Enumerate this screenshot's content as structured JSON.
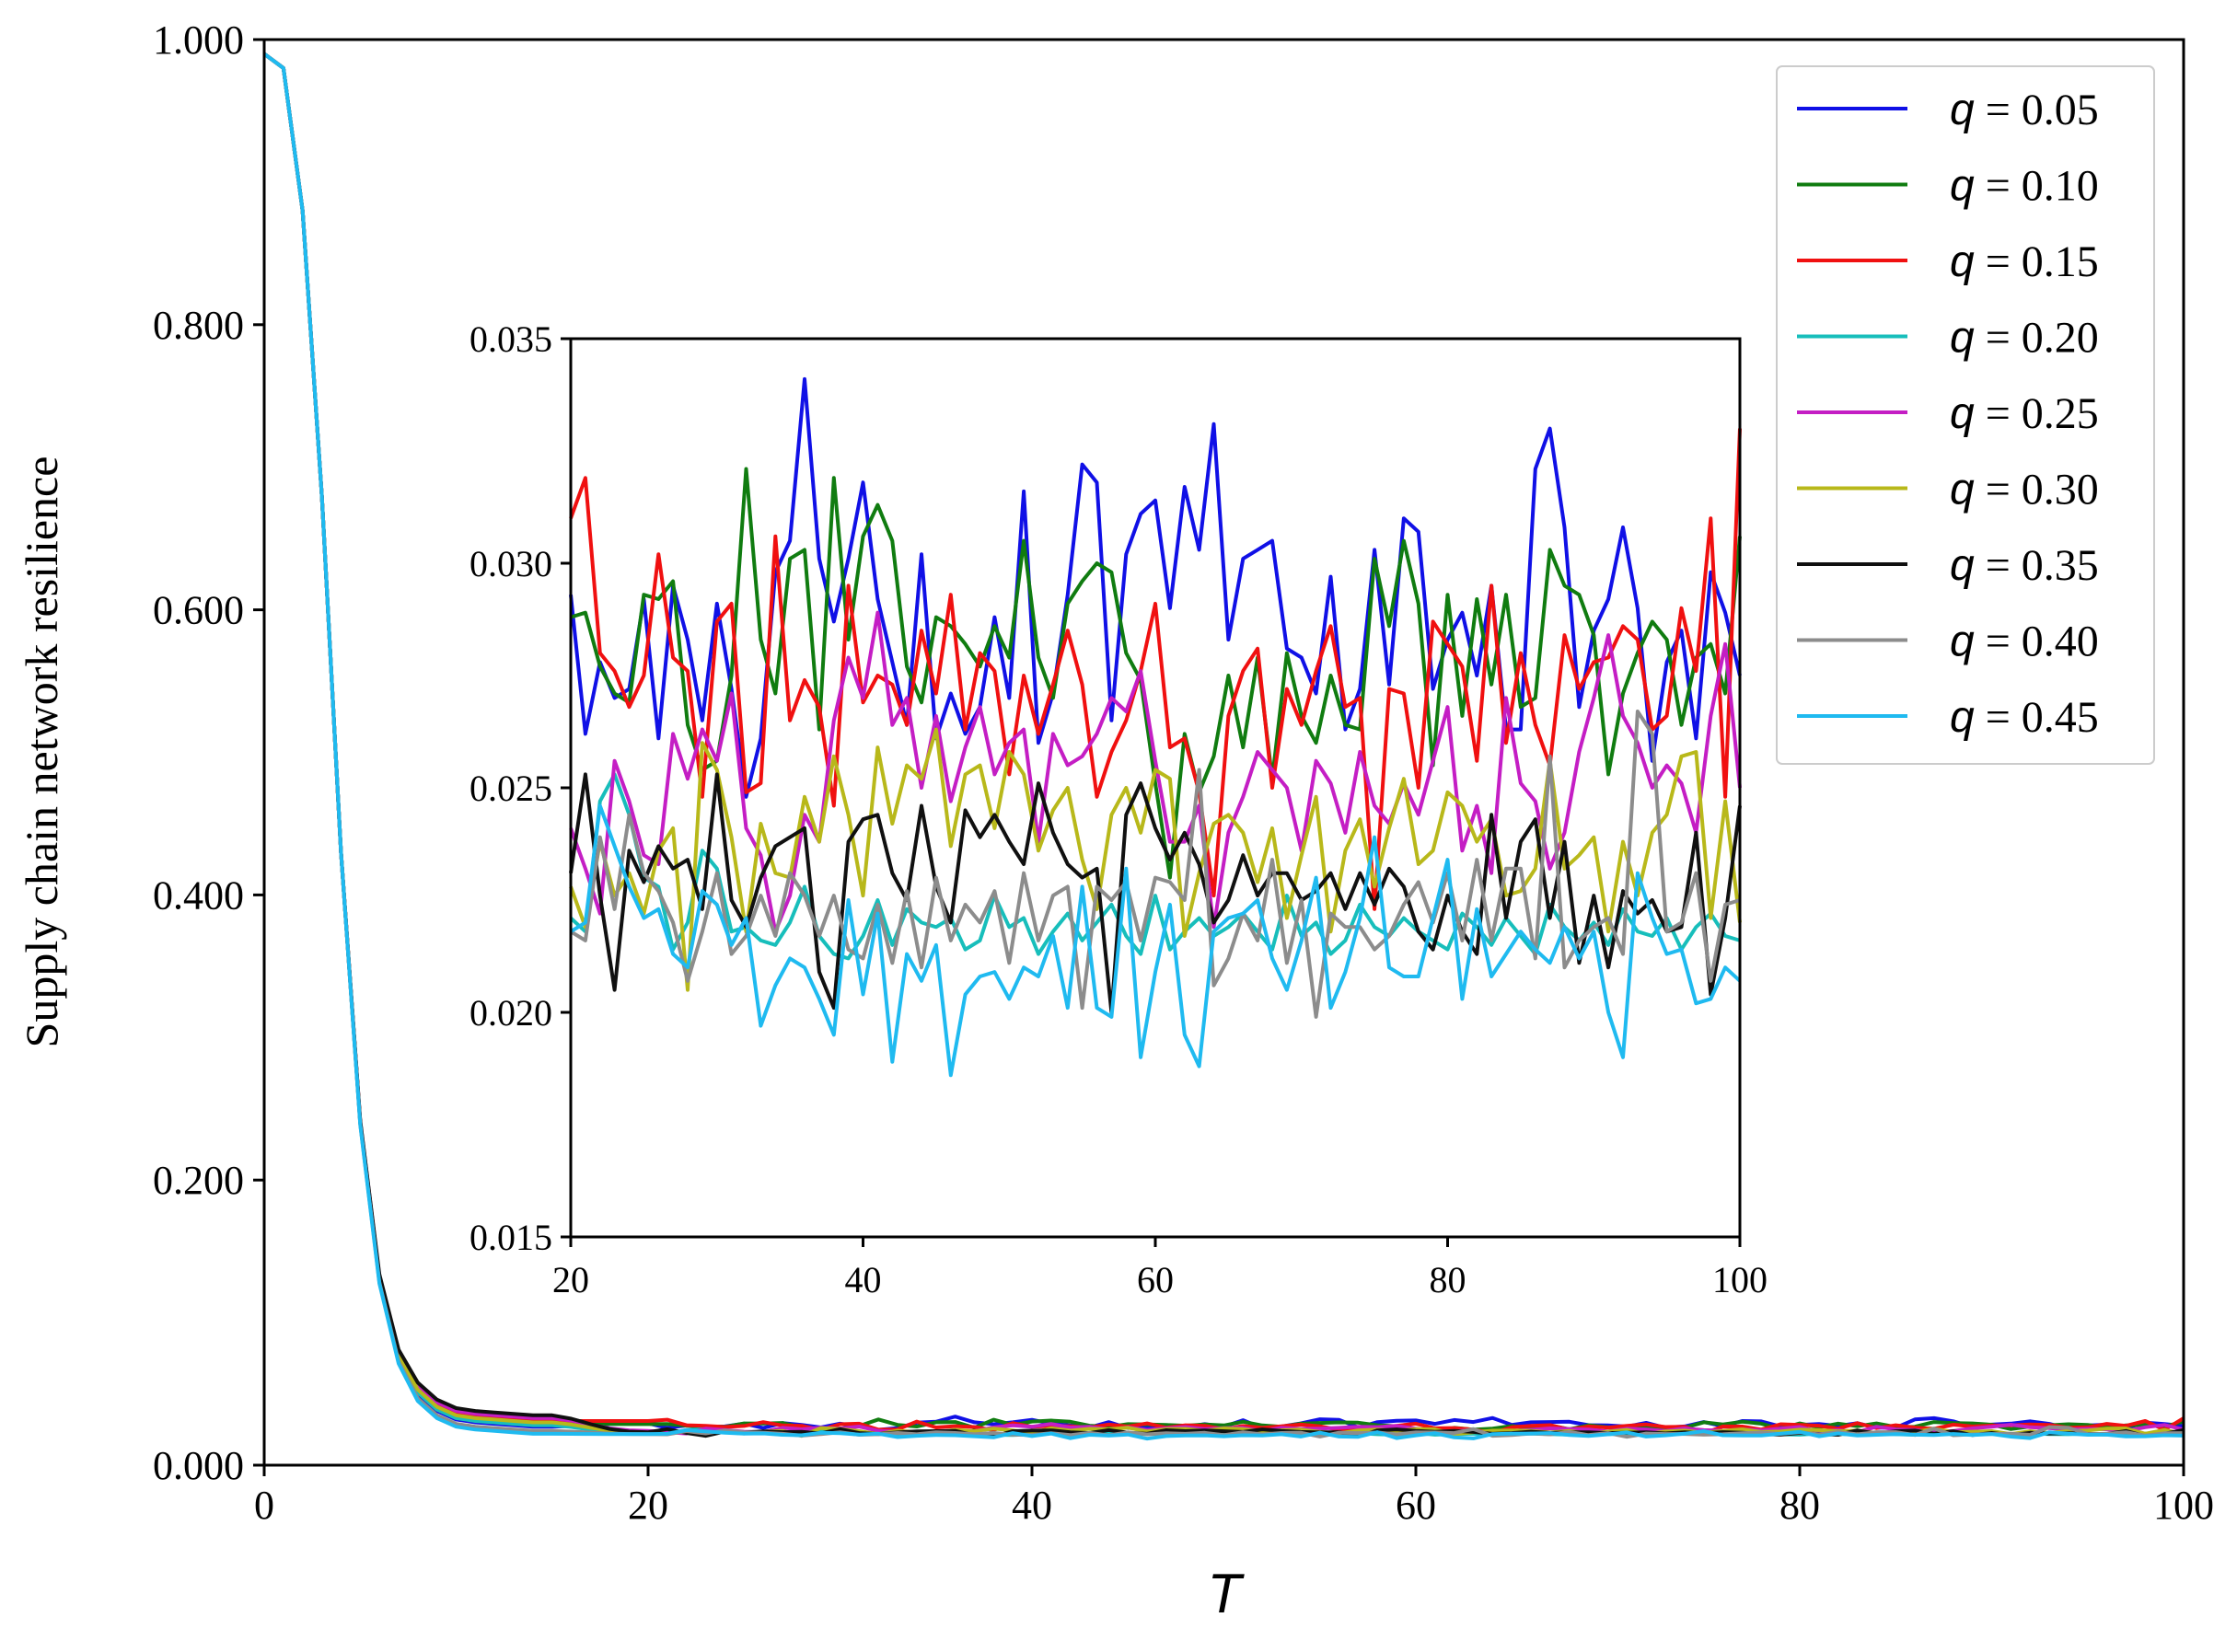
{
  "chart_data": {
    "type": "line",
    "ylabel": "Supply chain network resilience",
    "xlabel": "T",
    "xlim": [
      0,
      100
    ],
    "ylim": [
      0,
      1
    ],
    "xticks": [
      "0",
      "20",
      "40",
      "60",
      "80",
      "100"
    ],
    "yticks": [
      "0.000",
      "0.200",
      "0.400",
      "0.600",
      "0.800",
      "1.000"
    ],
    "grid": false,
    "legend_position": "top-right",
    "decay": {
      "x": [
        0,
        1,
        2,
        3,
        4,
        5,
        6,
        7,
        8,
        9,
        10,
        11,
        12,
        13,
        14,
        15
      ],
      "values": [
        0.99,
        0.98,
        0.88,
        0.68,
        0.43,
        0.24,
        0.13,
        0.075,
        0.05,
        0.038,
        0.032,
        0.03,
        0.029,
        0.028,
        0.027,
        0.027
      ],
      "offsets": [
        0.0,
        0.002,
        0.004,
        0.001,
        0.006,
        0.003,
        0.008,
        -0.003,
        -0.005
      ]
    },
    "series": [
      {
        "name": "q = 0.05",
        "q": "0.05",
        "color": "#1010e6",
        "values": [
          0.0293,
          0.0262,
          0.0278,
          0.027,
          0.0272,
          0.0292,
          0.0261,
          0.0295,
          0.0283,
          0.0265,
          0.0291,
          0.0272,
          0.0248,
          0.0261,
          0.0298,
          0.0305,
          0.0341,
          0.0301,
          0.0287,
          0.0301,
          0.0318,
          0.0292,
          0.0278,
          0.0264,
          0.0302,
          0.0261,
          0.0271,
          0.0262,
          0.0268,
          0.0288,
          0.027,
          0.0316,
          0.026,
          0.0271,
          0.0293,
          0.0322,
          0.0318,
          0.0265,
          0.0302,
          0.0311,
          0.0314,
          0.029,
          0.0317,
          0.0303,
          0.0331,
          0.0283,
          0.0301,
          0.0303,
          0.0305,
          0.0281,
          0.0279,
          0.0271,
          0.0297,
          0.0263,
          0.0272,
          0.0303,
          0.0273,
          0.031,
          0.0307,
          0.0272,
          0.0283,
          0.0289,
          0.0275,
          0.0295,
          0.0263,
          0.0263,
          0.0321,
          0.033,
          0.0308,
          0.0268,
          0.0285,
          0.0292,
          0.0308,
          0.029,
          0.0256,
          0.0278,
          0.0285,
          0.0261,
          0.0298,
          0.0289,
          0.0275
        ]
      },
      {
        "name": "q = 0.10",
        "q": "0.10",
        "color": "#107c10",
        "values": [
          0.0288,
          0.0289,
          0.0277,
          0.0271,
          0.0269,
          0.0293,
          0.0292,
          0.0296,
          0.0264,
          0.0254,
          0.0256,
          0.0275,
          0.0321,
          0.0283,
          0.0271,
          0.0301,
          0.0303,
          0.0263,
          0.0319,
          0.0283,
          0.0306,
          0.0313,
          0.0305,
          0.0277,
          0.0269,
          0.0288,
          0.0286,
          0.0282,
          0.0277,
          0.0286,
          0.0279,
          0.0305,
          0.0279,
          0.027,
          0.0291,
          0.0296,
          0.03,
          0.0298,
          0.028,
          0.0274,
          0.0251,
          0.023,
          0.0262,
          0.0249,
          0.0257,
          0.0275,
          0.0259,
          0.0279,
          0.0252,
          0.028,
          0.0266,
          0.026,
          0.0275,
          0.0264,
          0.0263,
          0.0301,
          0.0286,
          0.0305,
          0.0291,
          0.0255,
          0.0293,
          0.0266,
          0.0292,
          0.0273,
          0.0293,
          0.0268,
          0.027,
          0.0303,
          0.0295,
          0.0293,
          0.0284,
          0.0253,
          0.0271,
          0.028,
          0.0287,
          0.0283,
          0.0264,
          0.0279,
          0.0282,
          0.0271,
          0.0306
        ]
      },
      {
        "name": "q = 0.15",
        "q": "0.15",
        "color": "#f01010",
        "values": [
          0.031,
          0.0319,
          0.028,
          0.0276,
          0.0268,
          0.0275,
          0.0302,
          0.0279,
          0.0276,
          0.0248,
          0.0287,
          0.0291,
          0.0249,
          0.0251,
          0.0306,
          0.0265,
          0.0274,
          0.0268,
          0.0246,
          0.0295,
          0.0269,
          0.0275,
          0.0273,
          0.0264,
          0.0285,
          0.0271,
          0.0293,
          0.0263,
          0.028,
          0.0276,
          0.0253,
          0.0275,
          0.0262,
          0.0273,
          0.0285,
          0.0273,
          0.0248,
          0.0258,
          0.0265,
          0.0276,
          0.0291,
          0.0259,
          0.0261,
          0.0249,
          0.0226,
          0.0266,
          0.0276,
          0.0281,
          0.025,
          0.0272,
          0.0264,
          0.0276,
          0.0286,
          0.0268,
          0.027,
          0.0223,
          0.0272,
          0.0271,
          0.025,
          0.0287,
          0.0282,
          0.0277,
          0.0256,
          0.0295,
          0.026,
          0.028,
          0.0264,
          0.0255,
          0.0284,
          0.0272,
          0.0278,
          0.0279,
          0.0286,
          0.0283,
          0.0263,
          0.0266,
          0.029,
          0.0276,
          0.031,
          0.0248,
          0.033
        ]
      },
      {
        "name": "q = 0.20",
        "q": "0.20",
        "color": "#17bebb",
        "values": [
          0.0221,
          0.0218,
          0.0247,
          0.0253,
          0.0244,
          0.023,
          0.0228,
          0.0214,
          0.022,
          0.0236,
          0.0232,
          0.0218,
          0.0219,
          0.0216,
          0.0215,
          0.022,
          0.0228,
          0.0217,
          0.0213,
          0.0212,
          0.0217,
          0.0225,
          0.0215,
          0.0223,
          0.022,
          0.0219,
          0.0221,
          0.0214,
          0.0216,
          0.0226,
          0.0219,
          0.0221,
          0.0213,
          0.0218,
          0.0222,
          0.0216,
          0.022,
          0.0224,
          0.0217,
          0.0213,
          0.0226,
          0.0214,
          0.0218,
          0.0221,
          0.0217,
          0.0219,
          0.0222,
          0.0218,
          0.0214,
          0.0226,
          0.0217,
          0.022,
          0.0213,
          0.0216,
          0.0224,
          0.0219,
          0.0217,
          0.0221,
          0.0218,
          0.0216,
          0.0214,
          0.0222,
          0.0219,
          0.0215,
          0.0221,
          0.0217,
          0.0213,
          0.0224,
          0.0219,
          0.0216,
          0.022,
          0.0215,
          0.0223,
          0.0218,
          0.0217,
          0.0221,
          0.0214,
          0.0219,
          0.0222,
          0.0217,
          0.0216
        ]
      },
      {
        "name": "q = 0.25",
        "q": "0.25",
        "color": "#c41ec4",
        "values": [
          0.0241,
          0.0232,
          0.0222,
          0.0256,
          0.0247,
          0.0235,
          0.0233,
          0.0262,
          0.0252,
          0.0263,
          0.0256,
          0.0271,
          0.0241,
          0.0235,
          0.0218,
          0.0226,
          0.0244,
          0.0238,
          0.0265,
          0.0279,
          0.027,
          0.0289,
          0.0264,
          0.027,
          0.025,
          0.0266,
          0.0247,
          0.0259,
          0.0268,
          0.0253,
          0.026,
          0.0263,
          0.0238,
          0.0262,
          0.0255,
          0.0257,
          0.0262,
          0.027,
          0.0267,
          0.0276,
          0.0256,
          0.0238,
          0.0238,
          0.0246,
          0.0219,
          0.024,
          0.0248,
          0.0258,
          0.0254,
          0.025,
          0.0236,
          0.0256,
          0.0251,
          0.024,
          0.0258,
          0.0246,
          0.0242,
          0.0251,
          0.0244,
          0.0256,
          0.0268,
          0.0236,
          0.0246,
          0.0231,
          0.027,
          0.0251,
          0.0247,
          0.0232,
          0.024,
          0.0258,
          0.027,
          0.0284,
          0.0266,
          0.026,
          0.025,
          0.0255,
          0.0251,
          0.024,
          0.0266,
          0.0282,
          0.025
        ]
      },
      {
        "name": "q = 0.30",
        "q": "0.30",
        "color": "#b8b81a",
        "values": [
          0.0228,
          0.0219,
          0.0238,
          0.0226,
          0.0231,
          0.0222,
          0.0236,
          0.0241,
          0.0205,
          0.026,
          0.0254,
          0.0239,
          0.0218,
          0.0242,
          0.0231,
          0.023,
          0.0248,
          0.0238,
          0.0257,
          0.0244,
          0.0226,
          0.0259,
          0.0242,
          0.0255,
          0.0252,
          0.0263,
          0.0237,
          0.0253,
          0.0255,
          0.0241,
          0.0258,
          0.0253,
          0.0236,
          0.0245,
          0.025,
          0.0234,
          0.0223,
          0.0244,
          0.025,
          0.024,
          0.0254,
          0.0252,
          0.0217,
          0.0231,
          0.0242,
          0.0244,
          0.024,
          0.0229,
          0.0241,
          0.0221,
          0.0235,
          0.0248,
          0.0218,
          0.0236,
          0.0243,
          0.0228,
          0.0241,
          0.0252,
          0.0233,
          0.0236,
          0.0249,
          0.0246,
          0.0238,
          0.0243,
          0.0226,
          0.0227,
          0.0232,
          0.0256,
          0.0232,
          0.0235,
          0.0239,
          0.0218,
          0.0238,
          0.0226,
          0.024,
          0.0244,
          0.0257,
          0.0258,
          0.0221,
          0.0247,
          0.022
        ]
      },
      {
        "name": "q = 0.35",
        "q": "0.35",
        "color": "#101010",
        "values": [
          0.0231,
          0.0253,
          0.0226,
          0.0205,
          0.0236,
          0.0229,
          0.0237,
          0.0232,
          0.0234,
          0.0223,
          0.0253,
          0.0225,
          0.0219,
          0.023,
          0.0237,
          0.0239,
          0.0241,
          0.0209,
          0.0201,
          0.0238,
          0.0243,
          0.0244,
          0.0231,
          0.0225,
          0.0246,
          0.0228,
          0.022,
          0.0245,
          0.0239,
          0.0244,
          0.0238,
          0.0233,
          0.0251,
          0.024,
          0.0233,
          0.023,
          0.0232,
          0.02,
          0.0244,
          0.0251,
          0.0241,
          0.0234,
          0.024,
          0.0233,
          0.022,
          0.0225,
          0.0235,
          0.0226,
          0.0231,
          0.0231,
          0.0225,
          0.0227,
          0.0231,
          0.0223,
          0.0231,
          0.0224,
          0.0232,
          0.0228,
          0.0218,
          0.0214,
          0.0226,
          0.0218,
          0.0213,
          0.0244,
          0.0221,
          0.0238,
          0.0243,
          0.0221,
          0.0238,
          0.0211,
          0.0226,
          0.021,
          0.0227,
          0.0222,
          0.0225,
          0.0218,
          0.0219,
          0.024,
          0.0204,
          0.0221,
          0.0246
        ]
      },
      {
        "name": "q = 0.40",
        "q": "0.40",
        "color": "#8c8c8c",
        "values": [
          0.0218,
          0.0216,
          0.0239,
          0.0223,
          0.0244,
          0.0231,
          0.0227,
          0.022,
          0.0207,
          0.0218,
          0.0231,
          0.0213,
          0.0217,
          0.0226,
          0.0217,
          0.0231,
          0.0226,
          0.0217,
          0.0226,
          0.0214,
          0.0212,
          0.0224,
          0.0211,
          0.0227,
          0.021,
          0.023,
          0.0216,
          0.0224,
          0.022,
          0.0227,
          0.0211,
          0.0231,
          0.0216,
          0.0226,
          0.0228,
          0.0201,
          0.0228,
          0.0225,
          0.0229,
          0.0216,
          0.023,
          0.0229,
          0.0225,
          0.0254,
          0.0206,
          0.0212,
          0.0222,
          0.0216,
          0.0234,
          0.0211,
          0.0225,
          0.0199,
          0.0222,
          0.0219,
          0.0219,
          0.0214,
          0.0217,
          0.0224,
          0.0229,
          0.022,
          0.0231,
          0.0216,
          0.0234,
          0.0216,
          0.0232,
          0.0232,
          0.0212,
          0.0257,
          0.021,
          0.0216,
          0.0219,
          0.0221,
          0.0213,
          0.0267,
          0.0262,
          0.0218,
          0.022,
          0.0231,
          0.0207,
          0.0224,
          0.0225
        ]
      },
      {
        "name": "q = 0.45",
        "q": "0.45",
        "color": "#1fbaf0",
        "values": [
          0.0218,
          0.022,
          0.0246,
          0.0237,
          0.0228,
          0.0221,
          0.0223,
          0.0213,
          0.021,
          0.0227,
          0.0224,
          0.0215,
          0.0221,
          0.0197,
          0.0206,
          0.0212,
          0.021,
          0.0203,
          0.0195,
          0.0225,
          0.0204,
          0.0222,
          0.0189,
          0.0213,
          0.0207,
          0.0215,
          0.0186,
          0.0204,
          0.0208,
          0.0209,
          0.0203,
          0.021,
          0.0208,
          0.0217,
          0.0201,
          0.0228,
          0.0201,
          0.0199,
          0.0232,
          0.019,
          0.0209,
          0.0224,
          0.0195,
          0.0188,
          0.0218,
          0.0221,
          0.0222,
          0.0225,
          0.0212,
          0.0205,
          0.0216,
          0.023,
          0.0201,
          0.0209,
          0.0221,
          0.0239,
          0.021,
          0.0208,
          0.0208,
          0.0221,
          0.0234,
          0.0203,
          0.0223,
          0.0208,
          0.0213,
          0.0218,
          0.0214,
          0.0211,
          0.0219,
          0.0212,
          0.0218,
          0.02,
          0.019,
          0.0231,
          0.0221,
          0.0213,
          0.0214,
          0.0202,
          0.0203,
          0.021,
          0.0207
        ]
      }
    ],
    "inset": {
      "xlim": [
        20,
        100
      ],
      "ylim": [
        0.015,
        0.035
      ],
      "xticks": [
        "20",
        "40",
        "60",
        "80",
        "100"
      ],
      "yticks": [
        "0.015",
        "0.020",
        "0.025",
        "0.030",
        "0.035"
      ]
    }
  }
}
